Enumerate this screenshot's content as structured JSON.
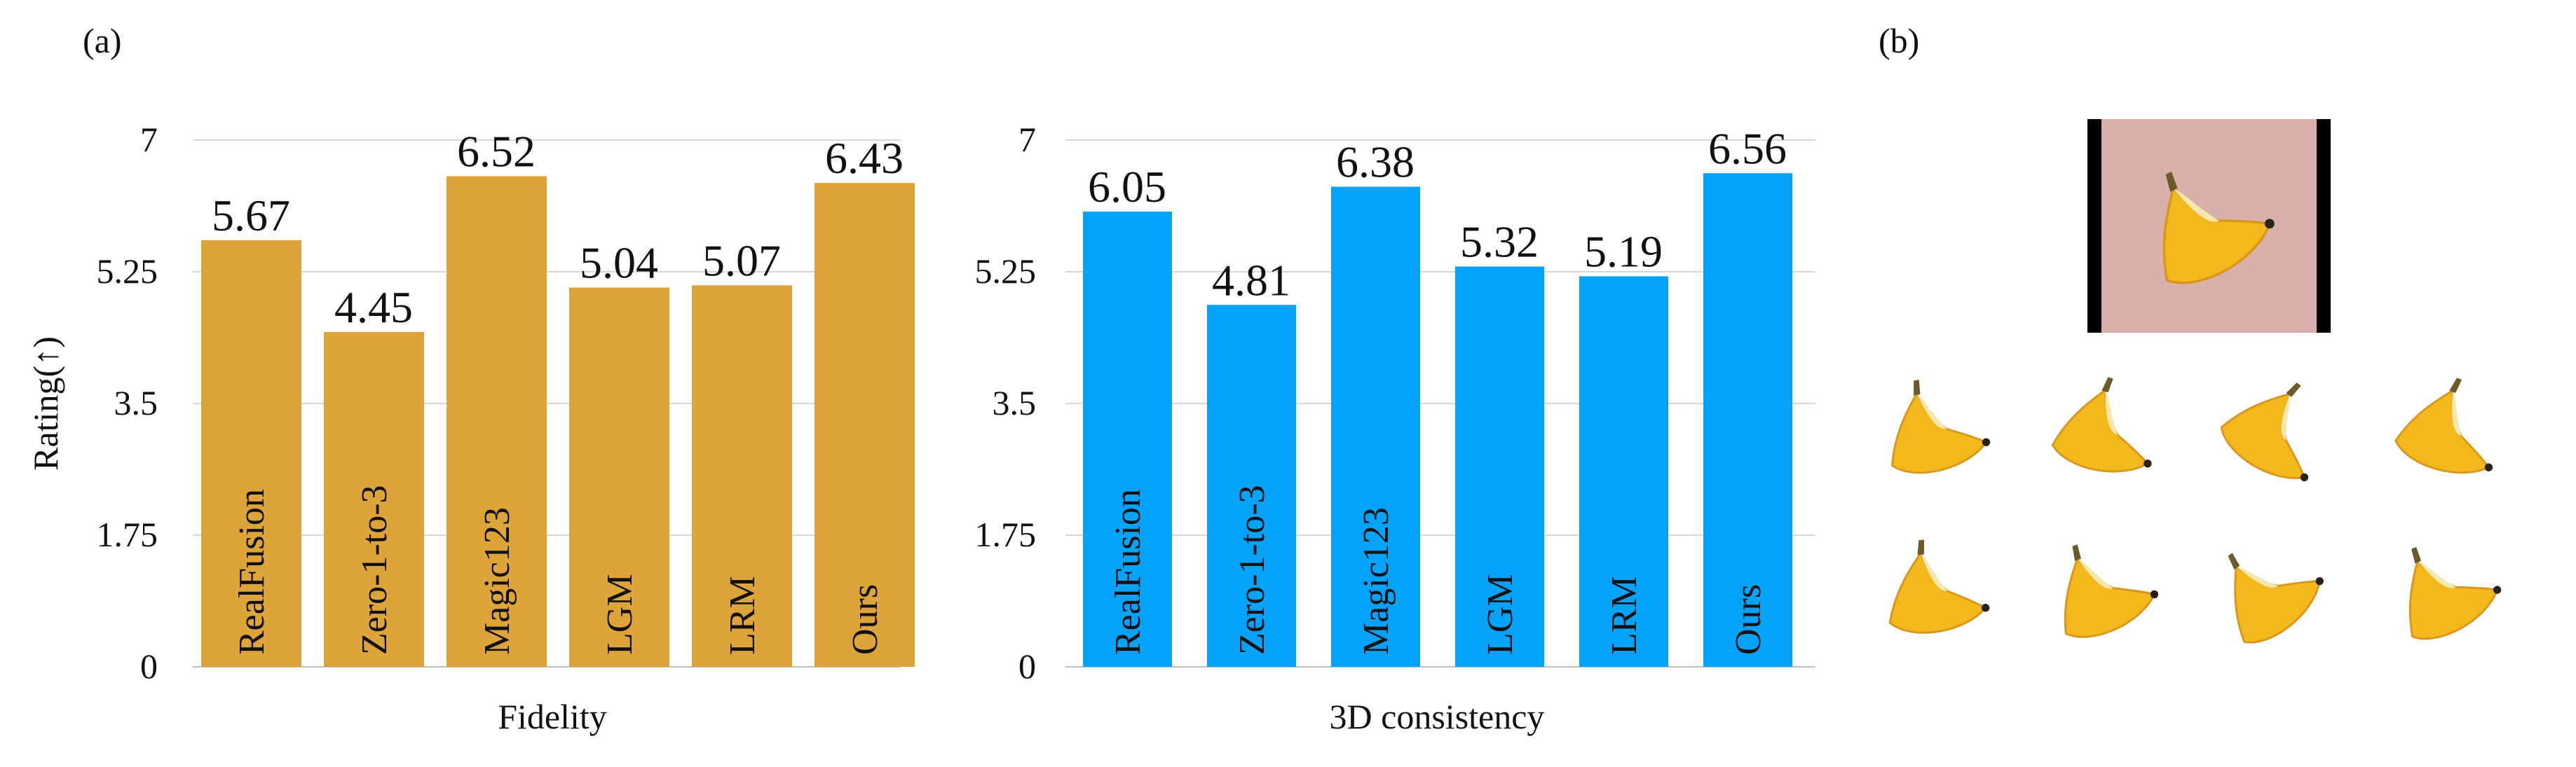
{
  "panel_labels": {
    "a": "(a)",
    "b": "(b)"
  },
  "chart_data": [
    {
      "type": "bar",
      "title": "",
      "xlabel": "Fidelity",
      "ylabel": "Rating(↑)",
      "ylim": [
        0,
        7
      ],
      "yticks": [
        "0",
        "1.75",
        "3.5",
        "5.25",
        "7"
      ],
      "grid": true,
      "color": "#DDA43A",
      "categories": [
        "RealFusion",
        "Zero-1-to-3",
        "Magic123",
        "LGM",
        "LRM",
        "Ours"
      ],
      "values": [
        5.67,
        4.45,
        6.52,
        5.04,
        5.07,
        6.43
      ],
      "value_labels": [
        "5.67",
        "4.45",
        "6.52",
        "5.04",
        "5.07",
        "6.43"
      ]
    },
    {
      "type": "bar",
      "title": "",
      "xlabel": "3D consistency",
      "ylabel": "",
      "ylim": [
        0,
        7
      ],
      "yticks": [
        "0",
        "1.75",
        "3.5",
        "5.25",
        "7"
      ],
      "grid": true,
      "color": "#04A2F9",
      "categories": [
        "RealFusion",
        "Zero-1-to-3",
        "Magic123",
        "LGM",
        "LRM",
        "Ours"
      ],
      "values": [
        6.05,
        4.81,
        6.38,
        5.32,
        5.19,
        6.56
      ],
      "value_labels": [
        "6.05",
        "4.81",
        "6.38",
        "5.32",
        "5.19",
        "6.56"
      ]
    }
  ],
  "images": {
    "input_image": "banana-input-photo",
    "generated_views": [
      "banana-view",
      "banana-view",
      "banana-view",
      "banana-view",
      "banana-view",
      "banana-view",
      "banana-view",
      "banana-view"
    ],
    "input_background_color": "#D9B1AA",
    "banana_color": "#F2B81C"
  }
}
